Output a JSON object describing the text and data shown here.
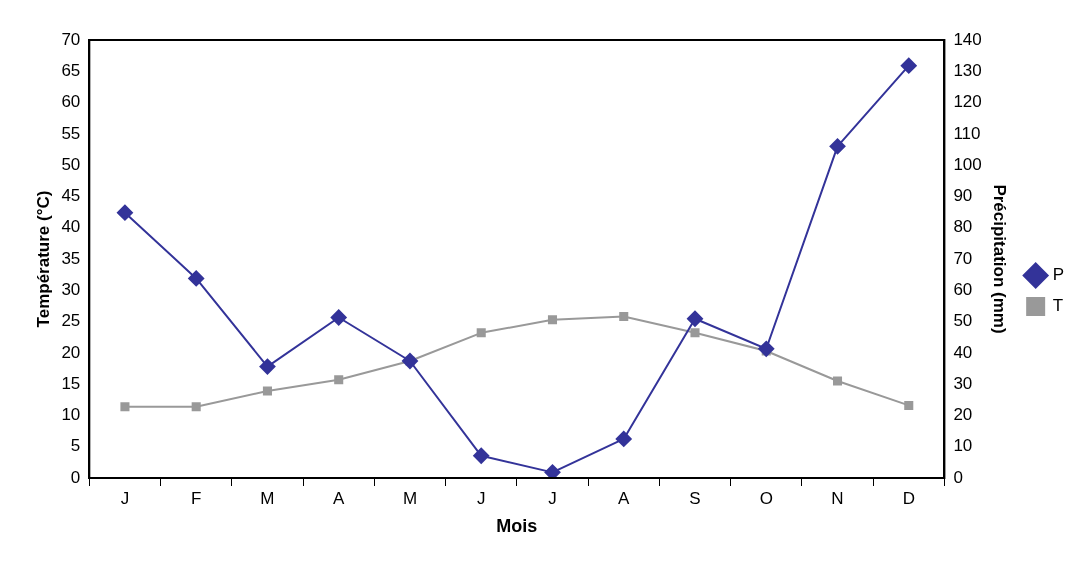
{
  "chart_data": {
    "type": "line",
    "xlabel": "Mois",
    "ylabel": "Température (°C)",
    "y2label": "Précipitation (mm)",
    "categories": [
      "J",
      "F",
      "M",
      "A",
      "M",
      "J",
      "J",
      "A",
      "S",
      "O",
      "N",
      "D"
    ],
    "series": [
      {
        "name": "T",
        "color": "#999999",
        "marker": "square",
        "values": [
          11.4,
          11.4,
          13.9,
          15.7,
          18.7,
          23.2,
          25.3,
          25.8,
          23.2,
          20.3,
          15.5,
          11.6
        ]
      },
      {
        "name": "P",
        "color": "#333399",
        "marker": "diamond",
        "axis": "y2",
        "values": [
          84.8,
          63.8,
          35.6,
          51.3,
          37.4,
          7.1,
          1.8,
          12.5,
          50.9,
          41.3,
          106,
          131.8
        ]
      }
    ],
    "ylim": [
      0,
      70
    ],
    "yticks": [
      0,
      5,
      10,
      15,
      20,
      25,
      30,
      35,
      40,
      45,
      50,
      55,
      60,
      65,
      70
    ],
    "y2lim": [
      0,
      140
    ],
    "y2ticks": [
      0,
      10,
      20,
      30,
      40,
      50,
      60,
      70,
      80,
      90,
      100,
      110,
      120,
      130,
      140
    ],
    "grid": false,
    "legend": "right",
    "line_style": "solid"
  }
}
